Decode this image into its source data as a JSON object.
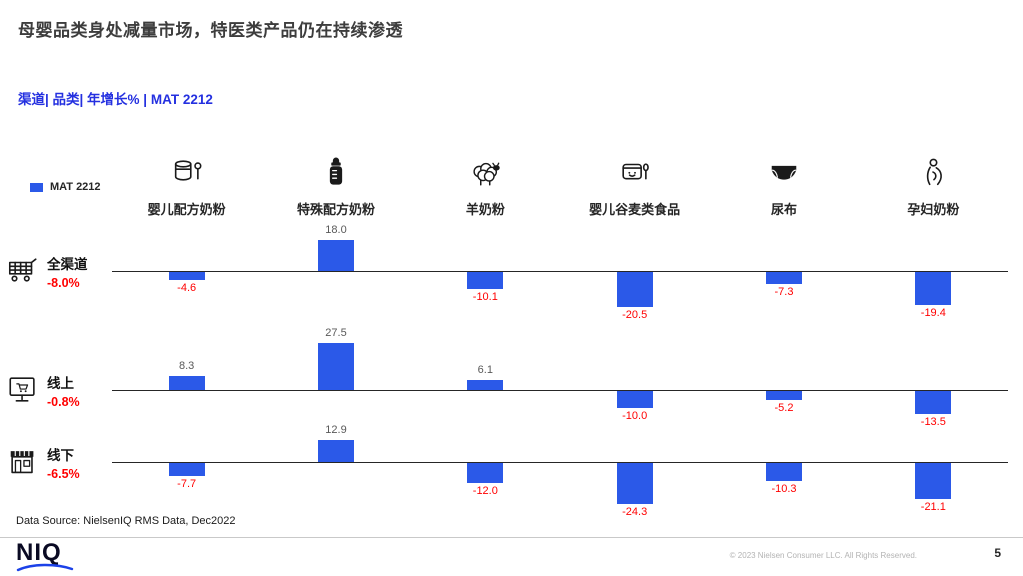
{
  "page": {
    "title": "母婴品类身处减量市场，特医类产品仍在持续渗透",
    "subtitle": "渠道| 品类| 年增长% | MAT 2212",
    "data_source": "Data Source: NielsenIQ RMS Data, Dec2022",
    "logo_text": "NIQ",
    "copyright": "© 2023 Nielsen Consumer LLC. All Rights Reserved.",
    "page_number": "5"
  },
  "legend": {
    "label": "MAT 2212",
    "color": "#2b59e8"
  },
  "chart_data": {
    "type": "bar",
    "title": "渠道| 品类| 年增长% | MAT 2212",
    "unit": "年增长%",
    "period": "MAT 2212",
    "bar_color": "#2b59e8",
    "positive_label_color": "#595959",
    "negative_label_color": "#ff0000",
    "categories": [
      "婴儿配方奶粉",
      "特殊配方奶粉",
      "羊奶粉",
      "婴儿谷麦类食品",
      "尿布",
      "孕妇奶粉"
    ],
    "category_icons": [
      "milk-can-icon",
      "baby-bottle-icon",
      "sheep-icon",
      "cereal-bowl-icon",
      "diaper-icon",
      "pregnant-woman-icon"
    ],
    "series": [
      {
        "name": "全渠道",
        "total": "-8.0%",
        "icon": "shopping-cart-icon",
        "values": [
          -4.6,
          18.0,
          -10.1,
          -20.5,
          -7.3,
          -19.4
        ]
      },
      {
        "name": "线上",
        "total": "-0.8%",
        "icon": "online-shop-icon",
        "values": [
          8.3,
          27.5,
          6.1,
          -10.0,
          -5.2,
          -13.5
        ]
      },
      {
        "name": "线下",
        "total": "-6.5%",
        "icon": "offline-store-icon",
        "values": [
          -7.7,
          12.9,
          -12.0,
          -24.3,
          -10.3,
          -21.1
        ]
      }
    ]
  }
}
